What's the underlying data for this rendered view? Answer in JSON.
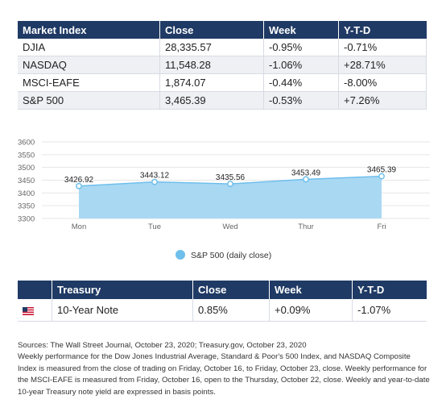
{
  "market_table": {
    "headers": [
      "Market Index",
      "Close",
      "Week",
      "Y-T-D"
    ],
    "rows": [
      [
        "DJIA",
        "28,335.57",
        "-0.95%",
        "-0.71%"
      ],
      [
        "NASDAQ",
        "11,548.28",
        "-1.06%",
        "+28.71%"
      ],
      [
        "MSCI-EAFE",
        "1,874.07",
        "-0.44%",
        "-8.00%"
      ],
      [
        "S&P 500",
        "3,465.39",
        "-0.53%",
        "+7.26%"
      ]
    ]
  },
  "chart_data": {
    "type": "area",
    "categories": [
      "Mon",
      "Tue",
      "Wed",
      "Thur",
      "Fri"
    ],
    "series": [
      {
        "name": "S&P 500 (daily close)",
        "values": [
          3426.92,
          3443.12,
          3435.56,
          3453.49,
          3465.39
        ]
      }
    ],
    "data_labels": [
      "3426.92",
      "3443.12",
      "3435.56",
      "3453.49",
      "3465.39"
    ],
    "yticks": [
      3300,
      3350,
      3400,
      3450,
      3500,
      3550,
      3600
    ],
    "ylim": [
      3300,
      3600
    ],
    "legend_position": "bottom",
    "colors": {
      "area": "#a9d8f3",
      "line": "#6fbfec",
      "marker": "#6fbfec"
    }
  },
  "treasury_table": {
    "headers": [
      "",
      "Treasury",
      "Close",
      "Week",
      "Y-T-D"
    ],
    "row": {
      "icon": "us-flag-icon",
      "name": "10-Year Note",
      "close": "0.85%",
      "week": "+0.09%",
      "ytd": "-1.07%"
    }
  },
  "footnote": {
    "sources": "Sources: The Wall Street Journal, October 23, 2020; Treasury.gov, October 23, 2020",
    "body": "Weekly performance for the Dow Jones Industrial Average, Standard & Poor's 500 Index, and NASDAQ Composite Index is measured from the close of trading on Friday, October 16, to Friday, October 23, close. Weekly performance for the MSCI-EAFE is measured from Friday, October 16, open to the Thursday, October 22, close. Weekly and year-to-date 10-year Treasury note yield are expressed in basis points."
  },
  "colors": {
    "header_bg": "#1f3a64",
    "row_alt": "#eef0f4"
  }
}
